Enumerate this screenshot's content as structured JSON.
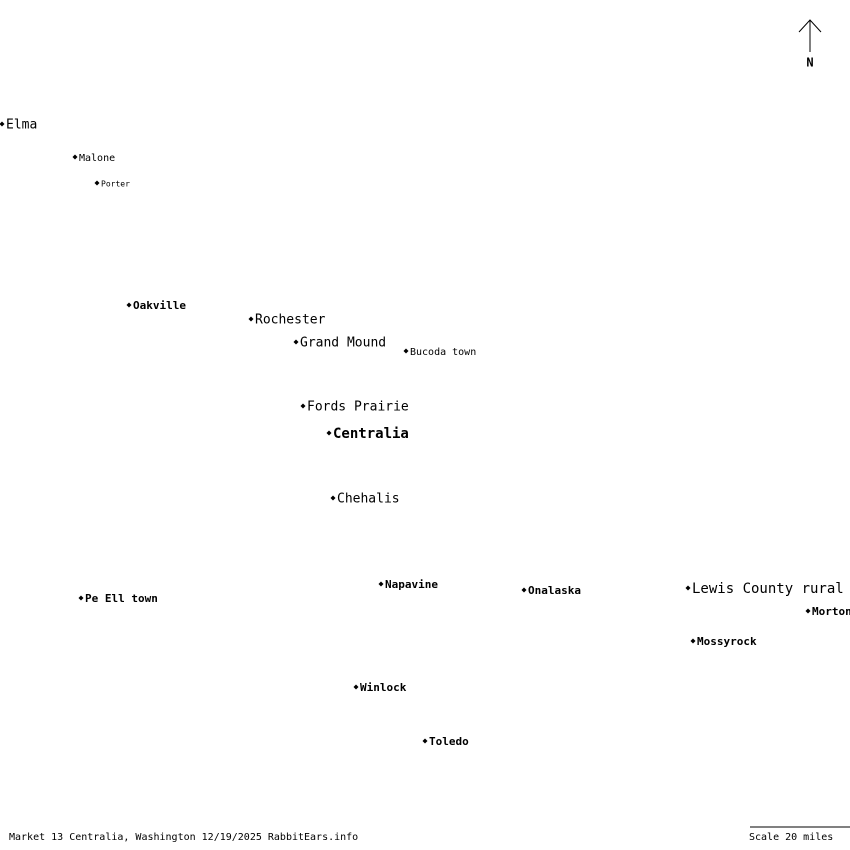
{
  "map": {
    "north_label": "N",
    "places": [
      {
        "name": "Elma"
      },
      {
        "name": "Malone"
      },
      {
        "name": "Porter"
      },
      {
        "name": "Oakville"
      },
      {
        "name": "Rochester"
      },
      {
        "name": "Grand Mound"
      },
      {
        "name": "Bucoda town"
      },
      {
        "name": "Fords Prairie"
      },
      {
        "name": "Centralia"
      },
      {
        "name": "Chehalis"
      },
      {
        "name": "Napavine"
      },
      {
        "name": "Onalaska"
      },
      {
        "name": "Lewis County rural"
      },
      {
        "name": "Morton"
      },
      {
        "name": "Pe Ell town"
      },
      {
        "name": "Mossyrock"
      },
      {
        "name": "Winlock"
      },
      {
        "name": "Toledo"
      }
    ],
    "footer": "Market 13 Centralia, Washington 12/19/2025 RabbitEars.info",
    "scale": "Scale 20 miles"
  }
}
